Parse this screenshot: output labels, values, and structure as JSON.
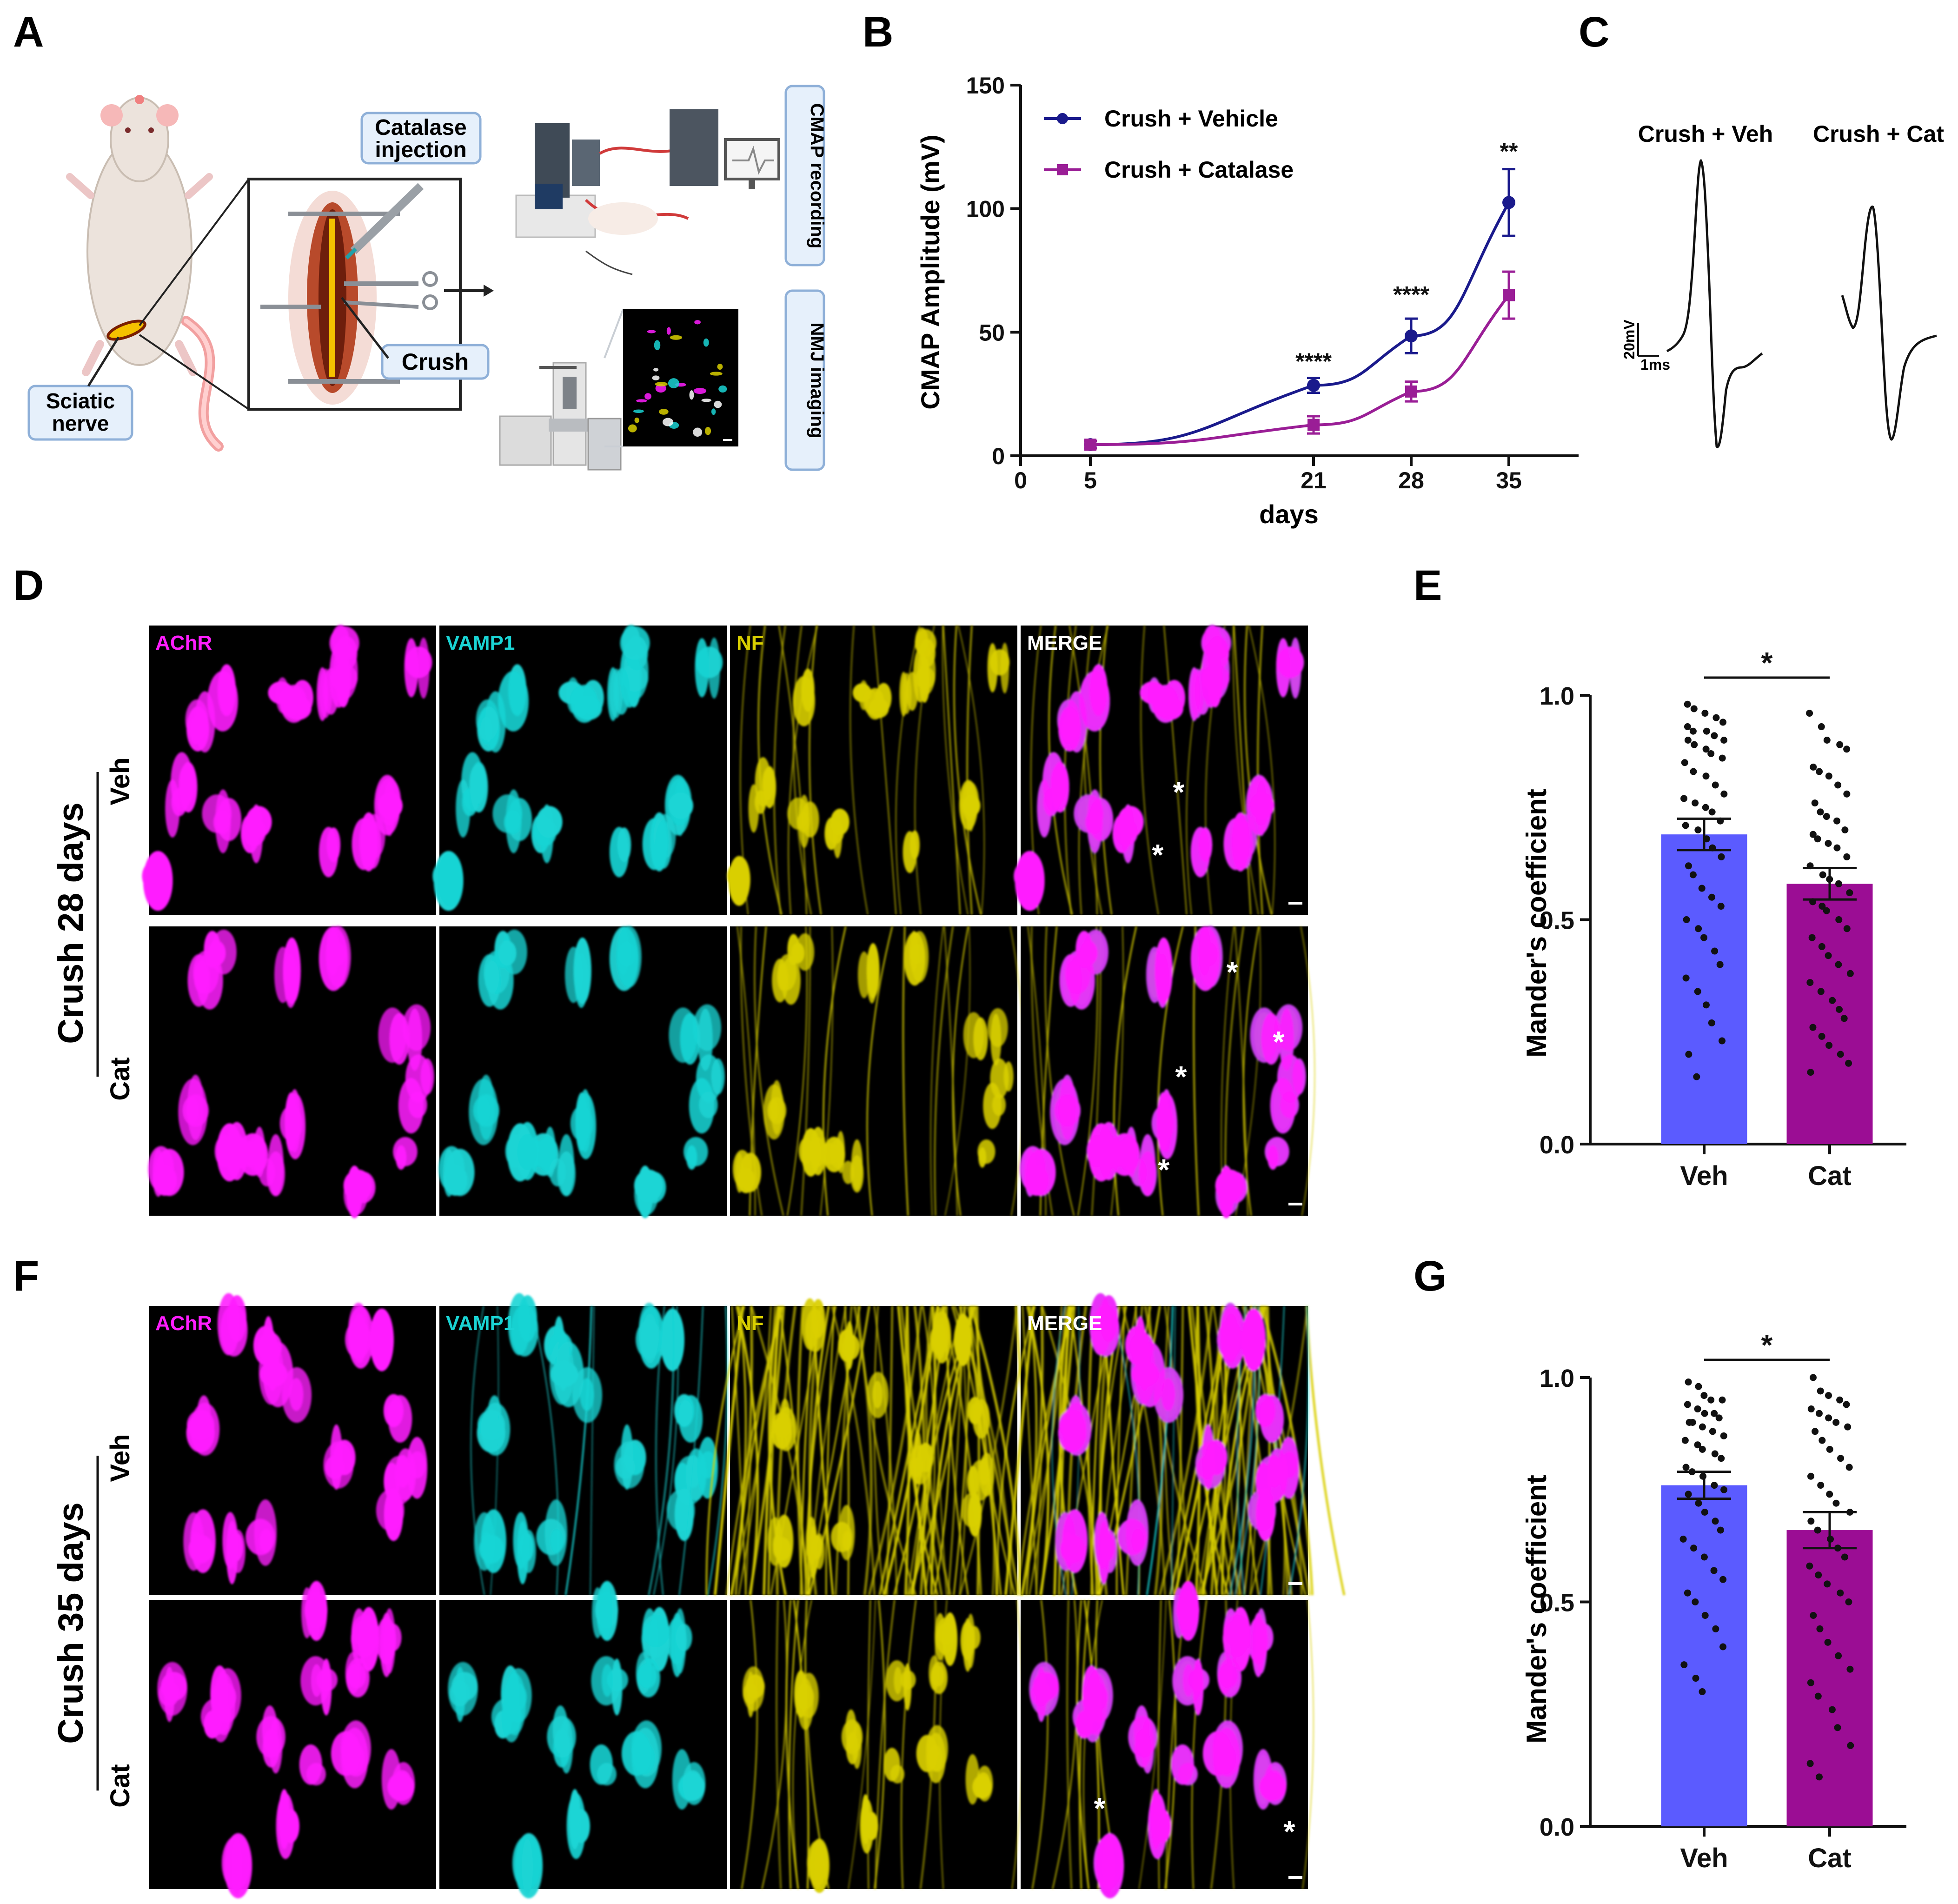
{
  "panel_labels": {
    "a": "A",
    "b": "B",
    "c": "C",
    "d": "D",
    "e": "E",
    "f": "F",
    "g": "G"
  },
  "panel_a": {
    "catalase_line1": "Catalase",
    "catalase_line2": "injection",
    "crush": "Crush",
    "sciatic_line1": "Sciatic",
    "sciatic_line2": "nerve",
    "cmap_recording": "CMAP recording",
    "nmj_imaging": "NMJ imaging",
    "arrow_icon": "right-arrow-icon"
  },
  "panel_c": {
    "left_title": "Crush + Veh",
    "right_title": "Crush + Cat",
    "scale_v": "20mV",
    "scale_t": "1ms"
  },
  "micrographs": {
    "channels": [
      "AChR",
      "VAMP1",
      "NF",
      "MERGE"
    ],
    "channel_colors": [
      "#ff1dff",
      "#1ad4d4",
      "#d9cf00",
      "#ffffff"
    ],
    "row_labels": [
      "Veh",
      "Cat"
    ],
    "d_group": "Crush 28 days",
    "f_group": "Crush 35 days",
    "asterisk": "*"
  },
  "colors": {
    "vehicle": "#1a1a8c",
    "catalase": "#9a1e96",
    "bar_veh": "#5b5bff",
    "bar_cat": "#9b0d94"
  },
  "chart_data": [
    {
      "id": "B",
      "type": "line",
      "xlabel": "days",
      "ylabel": "CMAP Amplitude (mV)",
      "xlim": [
        0,
        40
      ],
      "ylim": [
        0,
        150
      ],
      "x_ticks": [
        0,
        5,
        21,
        28,
        35
      ],
      "y_ticks": [
        0,
        50,
        100,
        150
      ],
      "legend_position": "top-left",
      "series": [
        {
          "name": "Crush + Vehicle",
          "color": "#1a1a8c",
          "marker": "circle",
          "x": [
            5,
            21,
            28,
            35
          ],
          "y": [
            4.5,
            28.5,
            48.5,
            102.5
          ],
          "err": [
            1.5,
            3,
            7,
            13.5
          ]
        },
        {
          "name": "Crush + Catalase",
          "color": "#9a1e96",
          "marker": "square",
          "x": [
            5,
            21,
            28,
            35
          ],
          "y": [
            4.5,
            12.5,
            26,
            65
          ],
          "err": [
            1.5,
            3.5,
            4,
            9.5
          ]
        }
      ],
      "annotations": [
        {
          "x": 21,
          "y": 35,
          "text": "****"
        },
        {
          "x": 28,
          "y": 62,
          "text": "****"
        },
        {
          "x": 35,
          "y": 120,
          "text": "**"
        }
      ]
    },
    {
      "id": "E",
      "type": "bar",
      "categories": [
        "Veh",
        "Cat"
      ],
      "values": [
        0.69,
        0.58
      ],
      "sem": [
        0.035,
        0.035
      ],
      "ylabel": "Mander's coefficient",
      "ylim": [
        0,
        1.0
      ],
      "y_ticks": [
        "0.0",
        "0.5",
        "1.0"
      ],
      "significance": "*",
      "points": [
        [
          0.98,
          0.97,
          0.96,
          0.95,
          0.94,
          0.93,
          0.92,
          0.92,
          0.91,
          0.9,
          0.9,
          0.89,
          0.88,
          0.87,
          0.86,
          0.85,
          0.83,
          0.82,
          0.8,
          0.78,
          0.77,
          0.76,
          0.75,
          0.74,
          0.72,
          0.71,
          0.7,
          0.68,
          0.66,
          0.64,
          0.62,
          0.6,
          0.57,
          0.55,
          0.53,
          0.5,
          0.48,
          0.46,
          0.43,
          0.4,
          0.37,
          0.34,
          0.31,
          0.27,
          0.23,
          0.2,
          0.15
        ],
        [
          0.96,
          0.93,
          0.9,
          0.89,
          0.88,
          0.84,
          0.83,
          0.82,
          0.8,
          0.78,
          0.76,
          0.74,
          0.73,
          0.72,
          0.7,
          0.69,
          0.68,
          0.67,
          0.66,
          0.64,
          0.62,
          0.6,
          0.59,
          0.58,
          0.56,
          0.54,
          0.53,
          0.52,
          0.5,
          0.48,
          0.46,
          0.44,
          0.42,
          0.4,
          0.38,
          0.36,
          0.34,
          0.32,
          0.3,
          0.28,
          0.26,
          0.24,
          0.22,
          0.2,
          0.18,
          0.16
        ]
      ]
    },
    {
      "id": "G",
      "type": "bar",
      "categories": [
        "Veh",
        "Cat"
      ],
      "values": [
        0.76,
        0.66
      ],
      "sem": [
        0.03,
        0.04
      ],
      "ylabel": "Mander's coefficient",
      "ylim": [
        0,
        1.0
      ],
      "y_ticks": [
        "0.0",
        "0.5",
        "1.0"
      ],
      "significance": "*",
      "points": [
        [
          0.99,
          0.98,
          0.96,
          0.95,
          0.95,
          0.94,
          0.93,
          0.92,
          0.92,
          0.91,
          0.9,
          0.9,
          0.89,
          0.88,
          0.87,
          0.86,
          0.85,
          0.84,
          0.83,
          0.82,
          0.8,
          0.79,
          0.78,
          0.76,
          0.75,
          0.74,
          0.72,
          0.7,
          0.68,
          0.66,
          0.64,
          0.62,
          0.6,
          0.57,
          0.55,
          0.52,
          0.5,
          0.47,
          0.44,
          0.4,
          0.36,
          0.33,
          0.3
        ],
        [
          1.0,
          0.97,
          0.96,
          0.95,
          0.94,
          0.93,
          0.92,
          0.91,
          0.9,
          0.89,
          0.88,
          0.86,
          0.84,
          0.82,
          0.8,
          0.78,
          0.76,
          0.74,
          0.72,
          0.7,
          0.68,
          0.66,
          0.64,
          0.62,
          0.6,
          0.58,
          0.56,
          0.54,
          0.52,
          0.5,
          0.47,
          0.44,
          0.41,
          0.38,
          0.35,
          0.32,
          0.29,
          0.26,
          0.22,
          0.18,
          0.14,
          0.11
        ]
      ]
    }
  ]
}
